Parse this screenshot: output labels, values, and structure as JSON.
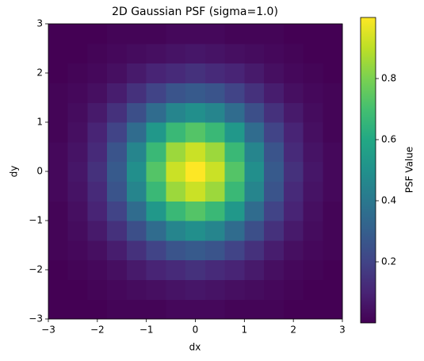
{
  "chart_data": {
    "type": "heatmap",
    "title": "2D Gaussian PSF (sigma=1.0)",
    "x_label": "dx",
    "y_label": "dy",
    "colorbar_label": "PSF Value",
    "colormap": "viridis",
    "x": [
      -2.8,
      -2.4,
      -2.0,
      -1.6,
      -1.2,
      -0.8,
      -0.4,
      0,
      0.4,
      0.8,
      1.2,
      1.6,
      2.0,
      2.4,
      2.8
    ],
    "y": [
      -2.8,
      -2.4,
      -2.0,
      -1.6,
      -1.2,
      -0.8,
      -0.4,
      0,
      0.4,
      0.8,
      1.2,
      1.6,
      2.0,
      2.4,
      2.8
    ],
    "z": [
      [
        0,
        0,
        0,
        0.01,
        0.01,
        0.01,
        0.02,
        0.02,
        0.02,
        0.01,
        0.01,
        0.01,
        0,
        0,
        0
      ],
      [
        0,
        0,
        0.01,
        0.02,
        0.03,
        0.04,
        0.05,
        0.06,
        0.05,
        0.04,
        0.03,
        0.02,
        0.01,
        0,
        0
      ],
      [
        0,
        0.01,
        0.02,
        0.04,
        0.07,
        0.1,
        0.12,
        0.14,
        0.12,
        0.1,
        0.07,
        0.04,
        0.02,
        0.01,
        0
      ],
      [
        0.01,
        0.02,
        0.04,
        0.08,
        0.14,
        0.2,
        0.26,
        0.28,
        0.26,
        0.2,
        0.14,
        0.08,
        0.04,
        0.02,
        0.01
      ],
      [
        0.01,
        0.03,
        0.07,
        0.14,
        0.24,
        0.35,
        0.45,
        0.49,
        0.45,
        0.35,
        0.24,
        0.14,
        0.07,
        0.03,
        0.01
      ],
      [
        0.01,
        0.04,
        0.1,
        0.2,
        0.35,
        0.53,
        0.67,
        0.73,
        0.67,
        0.53,
        0.35,
        0.2,
        0.1,
        0.04,
        0.01
      ],
      [
        0.02,
        0.05,
        0.12,
        0.26,
        0.45,
        0.67,
        0.85,
        0.92,
        0.85,
        0.67,
        0.45,
        0.26,
        0.12,
        0.05,
        0.02
      ],
      [
        0.02,
        0.06,
        0.14,
        0.28,
        0.49,
        0.73,
        0.92,
        1,
        0.92,
        0.73,
        0.49,
        0.28,
        0.14,
        0.06,
        0.02
      ],
      [
        0.02,
        0.05,
        0.12,
        0.26,
        0.45,
        0.67,
        0.85,
        0.92,
        0.85,
        0.67,
        0.45,
        0.26,
        0.12,
        0.05,
        0.02
      ],
      [
        0.01,
        0.04,
        0.1,
        0.2,
        0.35,
        0.53,
        0.67,
        0.73,
        0.67,
        0.53,
        0.35,
        0.2,
        0.1,
        0.04,
        0.01
      ],
      [
        0.01,
        0.03,
        0.07,
        0.14,
        0.24,
        0.35,
        0.45,
        0.49,
        0.45,
        0.35,
        0.24,
        0.14,
        0.07,
        0.03,
        0.01
      ],
      [
        0.01,
        0.02,
        0.04,
        0.08,
        0.14,
        0.2,
        0.26,
        0.28,
        0.26,
        0.2,
        0.14,
        0.08,
        0.04,
        0.02,
        0.01
      ],
      [
        0,
        0.01,
        0.02,
        0.04,
        0.07,
        0.1,
        0.12,
        0.14,
        0.12,
        0.1,
        0.07,
        0.04,
        0.02,
        0.01,
        0
      ],
      [
        0,
        0,
        0.01,
        0.02,
        0.03,
        0.04,
        0.05,
        0.06,
        0.05,
        0.04,
        0.03,
        0.02,
        0.01,
        0,
        0
      ],
      [
        0,
        0,
        0,
        0.01,
        0.01,
        0.01,
        0.02,
        0.02,
        0.02,
        0.01,
        0.01,
        0.01,
        0,
        0,
        0
      ]
    ],
    "xlim": [
      -3,
      3
    ],
    "ylim": [
      -3,
      3
    ],
    "xticks": [
      {
        "value": -3,
        "label": "−3"
      },
      {
        "value": -2,
        "label": "−2"
      },
      {
        "value": -1,
        "label": "−1"
      },
      0,
      1,
      2,
      3
    ],
    "yticks": [
      {
        "value": -3,
        "label": "−3"
      },
      {
        "value": -2,
        "label": "−2"
      },
      {
        "value": -1,
        "label": "−1"
      },
      0,
      1,
      2,
      3
    ],
    "clim": [
      0,
      1
    ],
    "cticks": [
      0.2,
      0.4,
      0.6,
      0.8
    ]
  }
}
